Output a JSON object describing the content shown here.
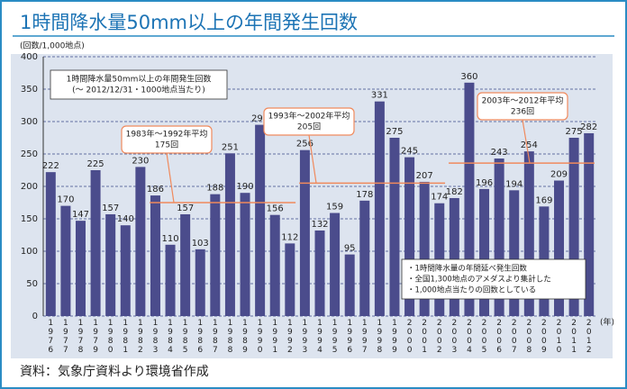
{
  "chart_data": {
    "type": "bar",
    "title": "1時間降水量50mm以上の年間発生回数",
    "y_axis_label": "(回数/1,000地点)",
    "x_axis_label": "(年)",
    "source": "資料：気象庁資料より環境省作成",
    "categories": [
      "1976",
      "1977",
      "1978",
      "1979",
      "1980",
      "1981",
      "1982",
      "1983",
      "1984",
      "1985",
      "1986",
      "1987",
      "1988",
      "1989",
      "1990",
      "1991",
      "1992",
      "1993",
      "1994",
      "1995",
      "1996",
      "1997",
      "1998",
      "1999",
      "2000",
      "2001",
      "2002",
      "2003",
      "2004",
      "2005",
      "2006",
      "2007",
      "2008",
      "2009",
      "2010",
      "2011",
      "2012"
    ],
    "values": [
      222,
      170,
      147,
      225,
      157,
      140,
      230,
      186,
      110,
      157,
      103,
      188,
      251,
      190,
      295,
      156,
      112,
      256,
      132,
      159,
      95,
      178,
      331,
      275,
      245,
      207,
      174,
      182,
      360,
      196,
      243,
      194,
      254,
      169,
      209,
      275,
      282
    ],
    "color": "#4b4c8c",
    "ylim": [
      0,
      400
    ],
    "yticks": [
      0,
      50,
      100,
      150,
      200,
      250,
      300,
      350,
      400
    ],
    "grid": true,
    "legend_box": [
      "1時間降水量50mm以上の年間発生回数",
      "(～ 2012/12/31・1000地点当たり)"
    ],
    "averages": [
      {
        "label": "1983年～1992年平均",
        "value_label": "175回",
        "value": 175,
        "color": "#f08a5d"
      },
      {
        "label": "1993年～2002年平均",
        "value_label": "205回",
        "value": 205,
        "color": "#f08a5d"
      },
      {
        "label": "2003年～2012年平均",
        "value_label": "236回",
        "value": 236,
        "color": "#f08a5d"
      }
    ],
    "notes": [
      "・1時間降水量の年間延べ発生回数",
      "・全国1,300地点のアメダスより集計した",
      "・1,000地点当たりの回数としている"
    ]
  }
}
